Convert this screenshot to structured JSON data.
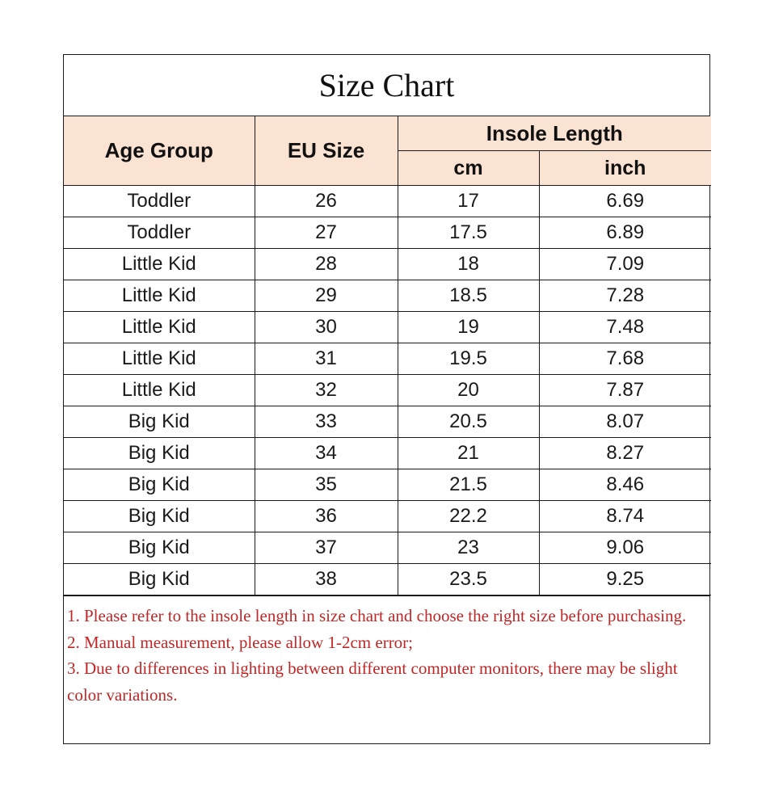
{
  "title": "Size Chart",
  "colors": {
    "header_bg": "#fbe3d4",
    "note_text": "#c22626",
    "border": "#1a1a1a"
  },
  "headers": {
    "age_group": "Age Group",
    "eu_size": "EU Size",
    "insole_length": "Insole Length",
    "cm": "cm",
    "inch": "inch"
  },
  "rows": [
    {
      "age": "Toddler",
      "eu": "26",
      "cm": "17",
      "inch": "6.69"
    },
    {
      "age": "Toddler",
      "eu": "27",
      "cm": "17.5",
      "inch": "6.89"
    },
    {
      "age": "Little Kid",
      "eu": "28",
      "cm": "18",
      "inch": "7.09"
    },
    {
      "age": "Little Kid",
      "eu": "29",
      "cm": "18.5",
      "inch": "7.28"
    },
    {
      "age": "Little Kid",
      "eu": "30",
      "cm": "19",
      "inch": "7.48"
    },
    {
      "age": "Little Kid",
      "eu": "31",
      "cm": "19.5",
      "inch": "7.68"
    },
    {
      "age": "Little Kid",
      "eu": "32",
      "cm": "20",
      "inch": "7.87"
    },
    {
      "age": "Big Kid",
      "eu": "33",
      "cm": "20.5",
      "inch": "8.07"
    },
    {
      "age": "Big Kid",
      "eu": "34",
      "cm": "21",
      "inch": "8.27"
    },
    {
      "age": "Big Kid",
      "eu": "35",
      "cm": "21.5",
      "inch": "8.46"
    },
    {
      "age": "Big Kid",
      "eu": "36",
      "cm": "22.2",
      "inch": "8.74"
    },
    {
      "age": "Big Kid",
      "eu": "37",
      "cm": "23",
      "inch": "9.06"
    },
    {
      "age": "Big Kid",
      "eu": "38",
      "cm": "23.5",
      "inch": "9.25"
    }
  ],
  "notes": [
    "1. Please refer to the insole length in  size chart and choose the right size before purchasing.",
    "2. Manual measurement, please allow 1-2cm error;",
    "3. Due to differences in lighting between different computer monitors, there may be slight color variations."
  ]
}
